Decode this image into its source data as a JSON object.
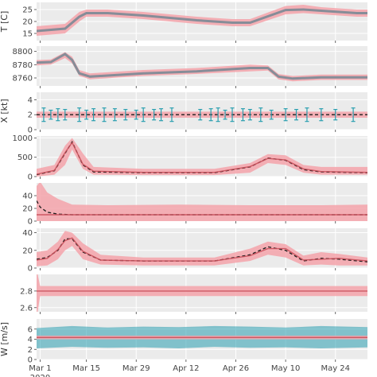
{
  "chart_data": {
    "type": "line",
    "x_axis": {
      "tick_labels": [
        "Mar 1\n2020",
        "Mar 15",
        "Mar 29",
        "Apr 12",
        "Apr 26",
        "May 10",
        "May 24"
      ],
      "range": [
        "2020-02-28",
        "2020-06-02"
      ]
    },
    "colors": {
      "band": "#f4a3aa",
      "band_light": "#f6b7bc",
      "observed": "#2a9fb0",
      "model_line": "#c94f5a",
      "dashed": "#1e1e1e",
      "panel_bg": "#ebebeb",
      "grid": "#ffffff"
    },
    "panels": [
      {
        "ylabel": "T [C]",
        "ylim": [
          12,
          28
        ],
        "yticks": [
          "15",
          "20",
          "25"
        ],
        "series": [
          {
            "kind": "band",
            "x": [
              0,
              8,
              12,
              14,
              20,
              30,
              45,
              55,
              60,
              70,
              75,
              80,
              90,
              93
            ],
            "lower": [
              14,
              15,
              20,
              22,
              22,
              21,
              19,
              18,
              18,
              23,
              23.5,
              23,
              22,
              22
            ],
            "upper": [
              18,
              19,
              24,
              25,
              25,
              24,
              22,
              21,
              21,
              26.5,
              27,
              26,
              25,
              25
            ]
          },
          {
            "kind": "line",
            "x": [
              0,
              8,
              12,
              14,
              20,
              30,
              45,
              55,
              60,
              70,
              75,
              80,
              90,
              93
            ],
            "y": [
              16,
              17,
              22,
              23.5,
              23.5,
              22.5,
              20.5,
              19.5,
              19.5,
              24.8,
              25,
              24.5,
              23.5,
              23.5
            ]
          }
        ]
      },
      {
        "ylabel": "",
        "ylim": [
          8748,
          8808
        ],
        "yticks": [
          "8760",
          "8780",
          "8800"
        ],
        "series": [
          {
            "kind": "band",
            "x": [
              0,
              4,
              8,
              10,
              12,
              15,
              30,
              45,
              60,
              65,
              68,
              72,
              80,
              93
            ],
            "lower": [
              8779,
              8780,
              8790,
              8782,
              8763,
              8758,
              8763,
              8766,
              8770,
              8771,
              8758,
              8755,
              8757,
              8757
            ],
            "upper": [
              8787,
              8788,
              8799,
              8792,
              8772,
              8767,
              8772,
              8775,
              8780,
              8779,
              8766,
              8763,
              8765,
              8765
            ]
          },
          {
            "kind": "line",
            "x": [
              0,
              4,
              8,
              10,
              12,
              15,
              30,
              45,
              60,
              65,
              68,
              72,
              80,
              93
            ],
            "y": [
              8783,
              8784,
              8796,
              8787,
              8767,
              8762,
              8767,
              8770,
              8775,
              8775,
              8762,
              8759,
              8761,
              8761
            ]
          }
        ]
      },
      {
        "ylabel": "X [kt]",
        "ylim": [
          0,
          5
        ],
        "yticks": [
          "0",
          "2",
          "4"
        ],
        "series": [
          {
            "kind": "band",
            "x": [
              0,
              93
            ],
            "lower": [
              1.6,
              1.6
            ],
            "upper": [
              2.4,
              2.4
            ]
          },
          {
            "kind": "dashed",
            "x": [
              0,
              93
            ],
            "y": [
              2,
              2
            ]
          },
          {
            "kind": "errorbars",
            "x": [
              2,
              4,
              6,
              8,
              12,
              14,
              16,
              19,
              22,
              25,
              28,
              30,
              33,
              35,
              38,
              46,
              49,
              51,
              53,
              55,
              58,
              60,
              63,
              66,
              70,
              73,
              76,
              80,
              84,
              89
            ],
            "y": [
              2,
              2,
              2,
              2,
              2,
              2,
              2,
              2,
              2,
              2,
              2,
              2,
              2,
              2,
              2,
              2,
              2,
              2,
              2,
              2,
              2,
              2,
              2,
              2,
              2,
              2,
              2,
              2,
              2,
              2
            ],
            "err": [
              0.9,
              0.6,
              0.8,
              0.7,
              0.9,
              0.6,
              0.8,
              0.9,
              0.8,
              0.7,
              0.6,
              0.9,
              0.7,
              0.8,
              0.9,
              0.7,
              0.8,
              0.9,
              0.6,
              0.9,
              0.8,
              0.7,
              0.9,
              0.6,
              0.8,
              0.7,
              0.9,
              0.8,
              0.7,
              0.9
            ]
          }
        ]
      },
      {
        "ylabel": "",
        "ylim": [
          0,
          1050
        ],
        "yticks": [
          "0",
          "500",
          "1000"
        ],
        "series": [
          {
            "kind": "band",
            "x": [
              0,
              5,
              8,
              10,
              13,
              16,
              30,
              50,
              60,
              65,
              70,
              75,
              80,
              93
            ],
            "lower": [
              0,
              50,
              300,
              700,
              200,
              50,
              40,
              40,
              100,
              350,
              300,
              100,
              50,
              50
            ],
            "upper": [
              200,
              300,
              800,
              1000,
              600,
              250,
              200,
              200,
              350,
              580,
              550,
              300,
              250,
              250
            ]
          },
          {
            "kind": "dashed",
            "x": [
              0,
              5,
              8,
              10,
              13,
              16,
              30,
              50,
              60,
              65,
              70,
              75,
              80,
              93
            ],
            "y": [
              50,
              150,
              600,
              900,
              300,
              120,
              100,
              100,
              250,
              480,
              420,
              180,
              120,
              100
            ]
          },
          {
            "kind": "line",
            "x": [
              0,
              5,
              8,
              10,
              13,
              16,
              30,
              50,
              60,
              65,
              70,
              75,
              80,
              93
            ],
            "y": [
              60,
              160,
              620,
              880,
              320,
              140,
              110,
              110,
              260,
              470,
              430,
              200,
              130,
              110
            ]
          }
        ]
      },
      {
        "ylabel": "",
        "ylim": [
          0,
          60
        ],
        "yticks": [
          "0",
          "20",
          "40"
        ],
        "series": [
          {
            "kind": "band",
            "x": [
              0,
              1,
              3,
              6,
              10,
              20,
              40,
              60,
              80,
              93
            ],
            "lower": [
              0,
              0,
              0,
              0,
              0,
              0,
              0,
              0,
              0,
              0
            ],
            "upper": [
              55,
              62,
              45,
              35,
              26,
              25,
              26,
              25,
              25,
              26
            ]
          },
          {
            "kind": "dashed",
            "x": [
              0,
              1,
              3,
              6,
              10,
              20,
              40,
              60,
              80,
              93
            ],
            "y": [
              32,
              22,
              14,
              11,
              10,
              10,
              10,
              10,
              10,
              10
            ]
          },
          {
            "kind": "line",
            "x": [
              0,
              93
            ],
            "y": [
              10,
              10
            ]
          }
        ]
      },
      {
        "ylabel": "",
        "ylim": [
          0,
          45
        ],
        "yticks": [
          "0",
          "20",
          "40"
        ],
        "series": [
          {
            "kind": "band",
            "x": [
              0,
              3,
              6,
              8,
              10,
              13,
              18,
              30,
              50,
              60,
              65,
              70,
              75,
              80,
              85,
              93
            ],
            "lower": [
              2,
              3,
              10,
              20,
              25,
              10,
              4,
              3,
              3,
              8,
              15,
              12,
              3,
              4,
              3,
              3
            ],
            "upper": [
              18,
              20,
              30,
              42,
              40,
              28,
              15,
              12,
              12,
              22,
              30,
              27,
              14,
              18,
              16,
              12
            ]
          },
          {
            "kind": "dashed",
            "x": [
              0,
              3,
              6,
              8,
              10,
              13,
              18,
              30,
              50,
              60,
              65,
              70,
              75,
              80,
              85,
              93
            ],
            "y": [
              10,
              12,
              20,
              33,
              33,
              18,
              9,
              8,
              8,
              15,
              24,
              20,
              8,
              11,
              10,
              7
            ]
          },
          {
            "kind": "line",
            "x": [
              0,
              3,
              6,
              8,
              10,
              13,
              18,
              30,
              50,
              60,
              65,
              70,
              75,
              80,
              85,
              93
            ],
            "y": [
              9,
              11,
              21,
              31,
              34,
              19,
              9,
              8,
              8,
              14,
              22,
              22,
              9,
              10,
              11,
              8
            ]
          }
        ]
      },
      {
        "ylabel": "",
        "ylim": [
          2.55,
          3.0
        ],
        "yticks": [
          "2.6",
          "2.8"
        ],
        "series": [
          {
            "kind": "band",
            "x": [
              0,
              0.3,
              1,
              93
            ],
            "lower": [
              2.55,
              2.55,
              2.74,
              2.74
            ],
            "upper": [
              3.0,
              3.0,
              2.86,
              2.86
            ]
          },
          {
            "kind": "line",
            "x": [
              0,
              93
            ],
            "y": [
              2.8,
              2.8
            ]
          }
        ]
      },
      {
        "ylabel": "W [m/s]",
        "ylim": [
          0,
          8
        ],
        "yticks": [
          "0",
          "2",
          "4",
          "6"
        ],
        "series": [
          {
            "kind": "band_observed",
            "x": [
              0,
              10,
              20,
              30,
              40,
              50,
              60,
              70,
              80,
              93
            ],
            "lower": [
              2.2,
              2.5,
              2.3,
              2.4,
              2.2,
              2.5,
              2.3,
              2.4,
              2.2,
              2.4
            ],
            "upper": [
              6.2,
              6.6,
              6.3,
              6.5,
              6.4,
              6.6,
              6.5,
              6.3,
              6.6,
              6.4
            ]
          },
          {
            "kind": "band",
            "x": [
              0,
              93
            ],
            "lower": [
              4.0,
              4.0
            ],
            "upper": [
              4.7,
              4.7
            ]
          },
          {
            "kind": "line",
            "x": [
              0,
              93
            ],
            "y": [
              4.35,
              4.35
            ]
          }
        ]
      }
    ]
  }
}
